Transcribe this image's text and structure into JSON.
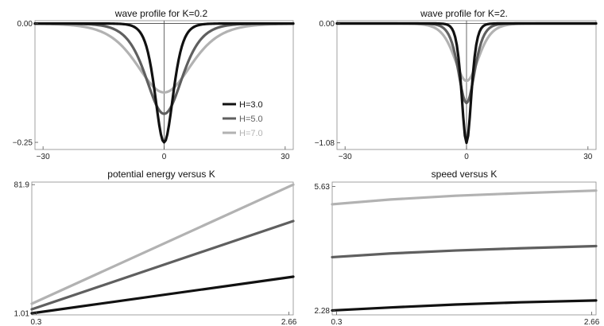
{
  "chart_data": [
    {
      "id": "p1",
      "type": "line",
      "title": "wave profile for K=0.2",
      "xlim": [
        -32,
        32
      ],
      "ylim": [
        -0.265,
        0.006
      ],
      "xticks": [
        {
          "v": -30,
          "label": "−30"
        },
        {
          "v": 0,
          "label": "0"
        },
        {
          "v": 30,
          "label": "30"
        }
      ],
      "yticks": [
        {
          "v": 0,
          "label": "0.00"
        },
        {
          "v": -0.25,
          "label": "−0.25"
        }
      ],
      "profile": {
        "shape": "sech2",
        "x_range": [
          -32,
          32
        ],
        "samples": 161
      },
      "series": [
        {
          "name": "H=3.0",
          "color": "#111111",
          "amplitude": 0.25,
          "width": 3.0
        },
        {
          "name": "H=5.0",
          "color": "#5f5f5f",
          "amplitude": 0.19,
          "width": 6.0
        },
        {
          "name": "H=7.0",
          "color": "#b2b2b2",
          "amplitude": 0.145,
          "width": 9.0
        }
      ],
      "legend": {
        "position": "right",
        "labels": [
          "H=3.0",
          "H=5.0",
          "H=7.0"
        ],
        "colors": [
          "#111111",
          "#5f5f5f",
          "#b2b2b2"
        ]
      }
    },
    {
      "id": "p2",
      "type": "line",
      "title": "wave profile for K=2.",
      "xlim": [
        -32,
        32
      ],
      "ylim": [
        -1.14,
        0.025
      ],
      "xticks": [
        {
          "v": -30,
          "label": "−30"
        },
        {
          "v": 0,
          "label": "0"
        },
        {
          "v": 30,
          "label": "30"
        }
      ],
      "yticks": [
        {
          "v": 0,
          "label": "0.00"
        },
        {
          "v": -1.08,
          "label": "−1.08"
        }
      ],
      "profile": {
        "shape": "sech2",
        "x_range": [
          -32,
          32
        ],
        "samples": 161
      },
      "series": [
        {
          "name": "H=3.0",
          "color": "#111111",
          "amplitude": 1.08,
          "width": 1.6
        },
        {
          "name": "H=5.0",
          "color": "#5f5f5f",
          "amplitude": 0.72,
          "width": 2.7
        },
        {
          "name": "H=7.0",
          "color": "#b2b2b2",
          "amplitude": 0.52,
          "width": 4.0
        }
      ]
    },
    {
      "id": "p3",
      "type": "line",
      "title": "potential energy versus K",
      "xlim": [
        0.26,
        2.7
      ],
      "ylim": [
        0,
        83.5
      ],
      "xticks": [
        {
          "v": 0.3,
          "label": "0.3"
        },
        {
          "v": 2.66,
          "label": "2.66"
        }
      ],
      "yticks": [
        {
          "v": 81.9,
          "label": "81.9"
        },
        {
          "v": 1.01,
          "label": "1.01"
        }
      ],
      "series": [
        {
          "name": "H=3.0",
          "color": "#111111",
          "x": [
            0.26,
            2.7
          ],
          "y": [
            1.01,
            24.0
          ]
        },
        {
          "name": "H=5.0",
          "color": "#5f5f5f",
          "x": [
            0.26,
            2.7
          ],
          "y": [
            3.5,
            59.0
          ]
        },
        {
          "name": "H=7.0",
          "color": "#b2b2b2",
          "x": [
            0.26,
            2.7
          ],
          "y": [
            7.0,
            81.9
          ]
        }
      ]
    },
    {
      "id": "p4",
      "type": "line",
      "title": "speed versus K",
      "xlim": [
        0.26,
        2.7
      ],
      "ylim": [
        2.16,
        5.75
      ],
      "xticks": [
        {
          "v": 0.3,
          "label": "0.3"
        },
        {
          "v": 2.66,
          "label": "2.66"
        }
      ],
      "yticks": [
        {
          "v": 5.63,
          "label": "5.63"
        },
        {
          "v": 2.28,
          "label": "2.28"
        }
      ],
      "series": [
        {
          "name": "H=3.0",
          "color": "#111111",
          "x": [
            0.26,
            0.8,
            1.4,
            2.0,
            2.7
          ],
          "y": [
            2.28,
            2.36,
            2.44,
            2.5,
            2.55
          ]
        },
        {
          "name": "H=5.0",
          "color": "#5f5f5f",
          "x": [
            0.26,
            0.8,
            1.4,
            2.0,
            2.7
          ],
          "y": [
            3.72,
            3.82,
            3.9,
            3.96,
            4.02
          ]
        },
        {
          "name": "H=7.0",
          "color": "#b2b2b2",
          "x": [
            0.26,
            0.8,
            1.4,
            2.0,
            2.7
          ],
          "y": [
            5.15,
            5.28,
            5.38,
            5.45,
            5.52
          ]
        }
      ]
    }
  ]
}
